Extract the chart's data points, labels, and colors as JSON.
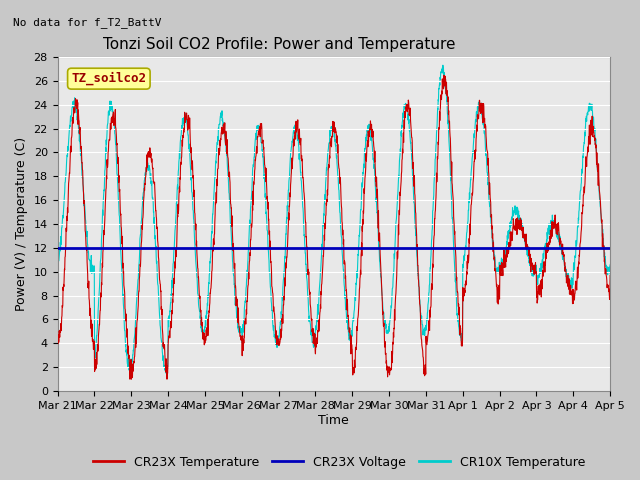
{
  "title": "Tonzi Soil CO2 Profile: Power and Temperature",
  "subtitle": "No data for f_T2_BattV",
  "ylabel": "Power (V) / Temperature (C)",
  "xlabel": "Time",
  "ylim": [
    0,
    28
  ],
  "yticks": [
    0,
    2,
    4,
    6,
    8,
    10,
    12,
    14,
    16,
    18,
    20,
    22,
    24,
    26,
    28
  ],
  "xtick_labels": [
    "Mar 21",
    "Mar 22",
    "Mar 23",
    "Mar 24",
    "Mar 25",
    "Mar 26",
    "Mar 27",
    "Mar 28",
    "Mar 29",
    "Mar 30",
    "Mar 31",
    "Apr 1",
    "Apr 2",
    "Apr 3",
    "Apr 4",
    "Apr 5"
  ],
  "voltage_value": 12.0,
  "fig_bg_color": "#c8c8c8",
  "plot_bg_color": "#e8e8e8",
  "cr23x_color": "#cc0000",
  "cr10x_color": "#00cccc",
  "voltage_color": "#0000bb",
  "grid_color": "#ffffff",
  "legend_box_facecolor": "#ffff99",
  "legend_box_edgecolor": "#aaaa00",
  "legend_box_label": "TZ_soilco2",
  "legend_items": [
    {
      "label": "CR23X Temperature",
      "color": "#cc0000"
    },
    {
      "label": "CR23X Voltage",
      "color": "#0000bb"
    },
    {
      "label": "CR10X Temperature",
      "color": "#00cccc"
    }
  ],
  "title_fontsize": 11,
  "axis_label_fontsize": 9,
  "tick_fontsize": 8,
  "legend_fontsize": 9
}
